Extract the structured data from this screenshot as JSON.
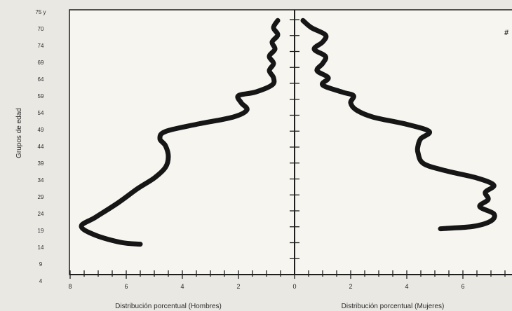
{
  "chart_data": {
    "type": "line",
    "title": "",
    "ylabel": "Grupos de edad",
    "xlabel_left": "Distribución porcentual (Hombres)",
    "xlabel_right": "Distribución porcentual (Mujeres)",
    "x_ticks_left": [
      "8",
      "6",
      "4",
      "2"
    ],
    "x_ticks_center": "0",
    "x_ticks_right": [
      "2",
      "4",
      "6"
    ],
    "xlim_left": [
      8,
      0
    ],
    "xlim_right": [
      0,
      7.6
    ],
    "y_tick_labels": [
      "75 y",
      "70",
      "74",
      "69",
      "64",
      "59",
      "54",
      "49",
      "44",
      "39",
      "34",
      "29",
      "24",
      "19",
      "14",
      "9",
      "4"
    ],
    "corner_mark": "#",
    "series": [
      {
        "side": "left",
        "points": [
          [
            0.6,
            75
          ],
          [
            0.75,
            73
          ],
          [
            0.6,
            71
          ],
          [
            0.8,
            69
          ],
          [
            0.7,
            67
          ],
          [
            0.9,
            65
          ],
          [
            0.75,
            63
          ],
          [
            0.9,
            61
          ],
          [
            0.75,
            59
          ],
          [
            0.8,
            57
          ],
          [
            1.4,
            55
          ],
          [
            2.0,
            54
          ],
          [
            1.9,
            52
          ],
          [
            1.7,
            50
          ],
          [
            2.2,
            48
          ],
          [
            3.5,
            46
          ],
          [
            4.6,
            44
          ],
          [
            4.8,
            42
          ],
          [
            4.6,
            40
          ],
          [
            4.5,
            37
          ],
          [
            4.6,
            34
          ],
          [
            5.0,
            31
          ],
          [
            5.6,
            28
          ],
          [
            6.3,
            24
          ],
          [
            7.1,
            20
          ],
          [
            7.6,
            17.5
          ],
          [
            7.1,
            15
          ],
          [
            6.2,
            13
          ],
          [
            5.5,
            12.5
          ]
        ]
      },
      {
        "side": "right",
        "points": [
          [
            0.3,
            75
          ],
          [
            0.6,
            73
          ],
          [
            1.1,
            71
          ],
          [
            1.0,
            69
          ],
          [
            0.7,
            67
          ],
          [
            1.1,
            65
          ],
          [
            1.0,
            63
          ],
          [
            0.8,
            61
          ],
          [
            1.2,
            59
          ],
          [
            1.0,
            57
          ],
          [
            1.7,
            55
          ],
          [
            2.1,
            54
          ],
          [
            2.0,
            52
          ],
          [
            2.2,
            50
          ],
          [
            2.8,
            48
          ],
          [
            4.0,
            46
          ],
          [
            4.8,
            44
          ],
          [
            4.5,
            42
          ],
          [
            4.4,
            40
          ],
          [
            4.4,
            38
          ],
          [
            4.6,
            35
          ],
          [
            5.4,
            33
          ],
          [
            6.5,
            31
          ],
          [
            7.1,
            29
          ],
          [
            6.8,
            27
          ],
          [
            6.9,
            25
          ],
          [
            6.6,
            23
          ],
          [
            7.1,
            21
          ],
          [
            7.0,
            19
          ],
          [
            6.4,
            17.5
          ],
          [
            5.6,
            17
          ],
          [
            5.2,
            16.8
          ]
        ]
      }
    ]
  }
}
